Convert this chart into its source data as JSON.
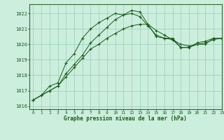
{
  "title": "Graphe pression niveau de la mer (hPa)",
  "background_color": "#cceedd",
  "line_color": "#1a5c1a",
  "grid_color": "#99ccbb",
  "xlim": [
    -0.5,
    23
  ],
  "ylim": [
    1015.8,
    1022.6
  ],
  "yticks": [
    1016,
    1017,
    1018,
    1019,
    1020,
    1021,
    1022
  ],
  "xticks": [
    0,
    1,
    2,
    3,
    4,
    5,
    6,
    7,
    8,
    9,
    10,
    11,
    12,
    13,
    14,
    15,
    16,
    17,
    18,
    19,
    20,
    21,
    22,
    23
  ],
  "series1_x": [
    0,
    1,
    2,
    3,
    4,
    5,
    6,
    7,
    8,
    9,
    10,
    11,
    12,
    13,
    14,
    15,
    16,
    17,
    18,
    19,
    20,
    21,
    22,
    23
  ],
  "series1_y": [
    1016.4,
    1016.7,
    1017.0,
    1017.3,
    1018.1,
    1018.7,
    1019.3,
    1020.1,
    1020.6,
    1021.1,
    1021.6,
    1021.9,
    1022.0,
    1021.8,
    1021.2,
    1020.6,
    1020.4,
    1020.3,
    1019.8,
    1019.8,
    1020.1,
    1020.2,
    1020.4,
    1020.4
  ],
  "series2_x": [
    0,
    1,
    2,
    3,
    4,
    5,
    6,
    7,
    8,
    9,
    10,
    11,
    12,
    13,
    14,
    15,
    16,
    17,
    18,
    19,
    20,
    21,
    22,
    23
  ],
  "series2_y": [
    1016.4,
    1016.7,
    1017.3,
    1017.5,
    1018.8,
    1019.4,
    1020.4,
    1021.0,
    1021.4,
    1021.7,
    1022.0,
    1021.9,
    1022.2,
    1022.1,
    1021.3,
    1020.5,
    1020.4,
    1020.4,
    1019.8,
    1019.8,
    1020.0,
    1020.0,
    1020.4,
    1020.4
  ],
  "series3_x": [
    0,
    1,
    2,
    3,
    4,
    5,
    6,
    7,
    8,
    9,
    10,
    11,
    12,
    13,
    14,
    15,
    16,
    17,
    18,
    19,
    20,
    21,
    22,
    23
  ],
  "series3_y": [
    1016.4,
    1016.7,
    1017.0,
    1017.3,
    1017.9,
    1018.5,
    1019.1,
    1019.7,
    1020.0,
    1020.4,
    1020.7,
    1021.0,
    1021.2,
    1021.3,
    1021.3,
    1020.9,
    1020.6,
    1020.3,
    1020.0,
    1019.9,
    1020.0,
    1020.1,
    1020.3,
    1020.4
  ]
}
